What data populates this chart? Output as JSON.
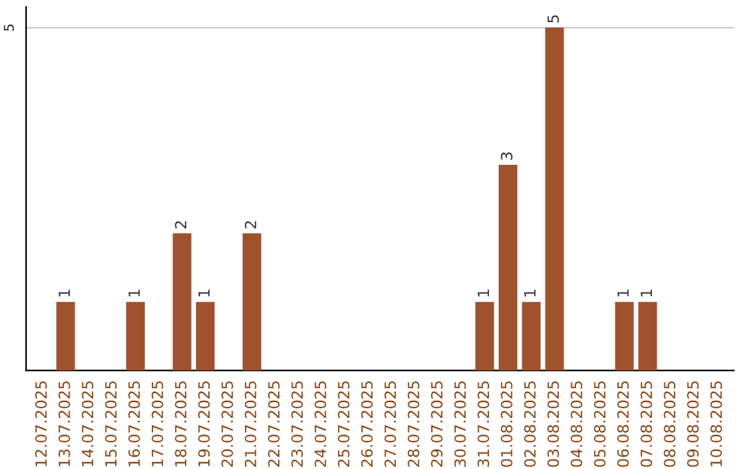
{
  "chart_data": {
    "type": "bar",
    "categories": [
      "12.07.2025",
      "13.07.2025",
      "14.07.2025",
      "15.07.2025",
      "16.07.2025",
      "17.07.2025",
      "18.07.2025",
      "19.07.2025",
      "20.07.2025",
      "21.07.2025",
      "22.07.2025",
      "23.07.2025",
      "24.07.2025",
      "25.07.2025",
      "26.07.2025",
      "27.07.2025",
      "28.07.2025",
      "29.07.2025",
      "30.07.2025",
      "31.07.2025",
      "01.08.2025",
      "02.08.2025",
      "03.08.2025",
      "04.08.2025",
      "05.08.2025",
      "06.08.2025",
      "07.08.2025",
      "08.08.2025",
      "09.08.2025",
      "10.08.2025"
    ],
    "values": [
      0,
      1,
      0,
      0,
      1,
      0,
      2,
      1,
      0,
      2,
      0,
      0,
      0,
      0,
      0,
      0,
      0,
      0,
      0,
      1,
      3,
      1,
      5,
      0,
      0,
      1,
      1,
      0,
      0,
      0
    ],
    "value_labels": [
      null,
      "1",
      null,
      null,
      "1",
      null,
      "2",
      "1",
      null,
      "2",
      null,
      null,
      null,
      null,
      null,
      null,
      null,
      null,
      null,
      "1",
      "3",
      "1",
      "5",
      null,
      null,
      "1",
      "1",
      null,
      null,
      null
    ],
    "color": "#a0522d",
    "ylim": [
      0,
      5.3
    ],
    "yticks": [
      5
    ],
    "grid": "y"
  }
}
